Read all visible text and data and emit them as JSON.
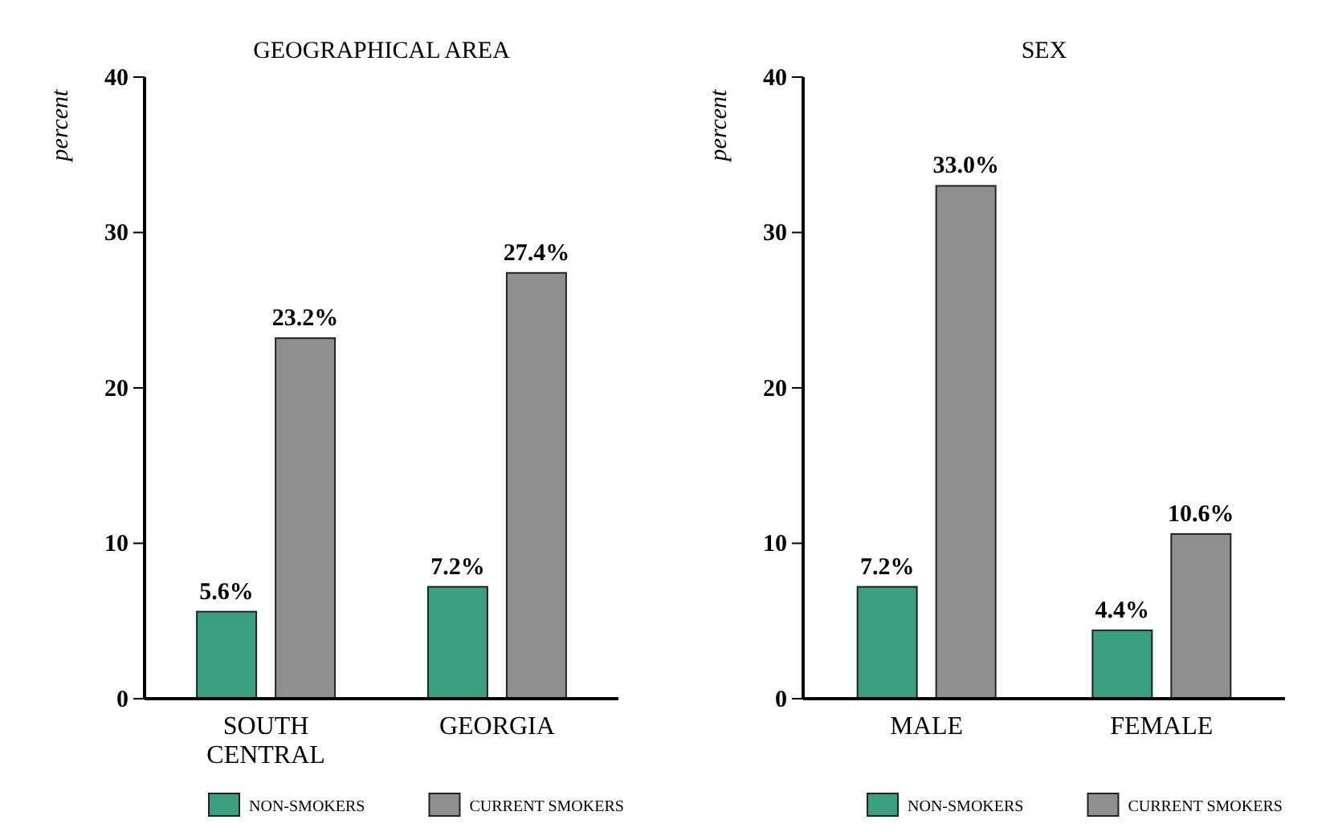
{
  "chart_data": [
    {
      "type": "bar",
      "title": "GEOGRAPHICAL AREA",
      "ylabel": "percent",
      "categories": [
        "SOUTH CENTRAL",
        "GEORGIA"
      ],
      "ylim": [
        0,
        40
      ],
      "yticks": [
        0,
        10,
        20,
        30,
        40
      ],
      "grid": false,
      "legend": "bottom",
      "series": [
        {
          "name": "NON-SMOKERS",
          "color": "#3a9e80",
          "values": [
            5.6,
            7.2
          ],
          "value_labels": [
            "5.6%",
            "7.2%"
          ]
        },
        {
          "name": "CURRENT SMOKERS",
          "color": "#8f8f8f",
          "values": [
            23.2,
            27.4
          ],
          "value_labels": [
            "23.2%",
            "27.4%"
          ]
        }
      ]
    },
    {
      "type": "bar",
      "title": "SEX",
      "ylabel": "percent",
      "categories": [
        "MALE",
        "FEMALE"
      ],
      "ylim": [
        0,
        40
      ],
      "yticks": [
        0,
        10,
        20,
        30,
        40
      ],
      "grid": false,
      "legend": "bottom",
      "series": [
        {
          "name": "NON-SMOKERS",
          "color": "#3a9e80",
          "values": [
            7.2,
            4.4
          ],
          "value_labels": [
            "7.2%",
            "4.4%"
          ]
        },
        {
          "name": "CURRENT SMOKERS",
          "color": "#8f8f8f",
          "values": [
            33.0,
            10.6
          ],
          "value_labels": [
            "33.0%",
            "10.6%"
          ]
        }
      ]
    }
  ]
}
